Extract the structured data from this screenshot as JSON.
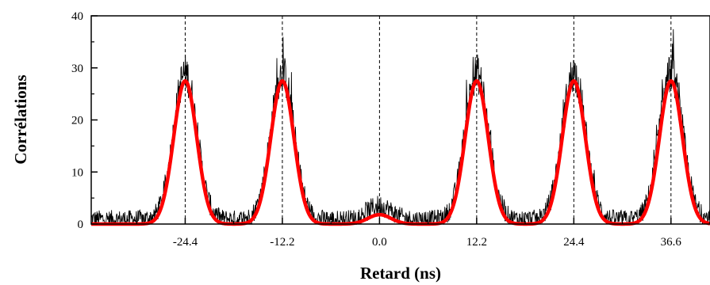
{
  "chart_data": {
    "type": "line",
    "title": "",
    "xlabel": "Retard (ns)",
    "ylabel": "Corrélations",
    "xlim": [
      -36.2,
      41.5
    ],
    "ylim": [
      0,
      40
    ],
    "x_ticks": [
      -24.4,
      -12.2,
      0.0,
      12.2,
      24.4,
      36.6
    ],
    "x_tick_labels": [
      "-24.4",
      "-12.2",
      "0.0",
      "12.2",
      "24.4",
      "36.6"
    ],
    "y_ticks": [
      0,
      10,
      20,
      30,
      40
    ],
    "y_tick_labels": [
      "0",
      "10",
      "20",
      "30",
      "40"
    ],
    "grid": false,
    "legend": "none",
    "reference_lines_x": [
      -24.4,
      -12.2,
      0.0,
      12.2,
      24.4,
      36.6
    ],
    "series": [
      {
        "kind": "measured-histogram",
        "color": "#000000",
        "baseline": 1.0,
        "noise_amplitude": 1.2,
        "peaks": [
          {
            "center": -24.4,
            "height": 28,
            "max_count": 34
          },
          {
            "center": -12.2,
            "height": 28,
            "max_count": 40
          },
          {
            "center": 0.0,
            "height": 2.5,
            "max_count": 4
          },
          {
            "center": 12.2,
            "height": 28,
            "max_count": 36
          },
          {
            "center": 24.4,
            "height": 28,
            "max_count": 35
          },
          {
            "center": 36.6,
            "height": 28,
            "max_count": 38
          }
        ]
      },
      {
        "kind": "gaussian-fit",
        "color": "#ff0000",
        "sigma": 1.45,
        "peaks": [
          {
            "center": -24.4,
            "height": 27.5
          },
          {
            "center": -12.2,
            "height": 27.5
          },
          {
            "center": 0.0,
            "height": 1.8
          },
          {
            "center": 12.2,
            "height": 27.5
          },
          {
            "center": 24.4,
            "height": 27.5
          },
          {
            "center": 36.6,
            "height": 27.5
          }
        ]
      }
    ]
  }
}
